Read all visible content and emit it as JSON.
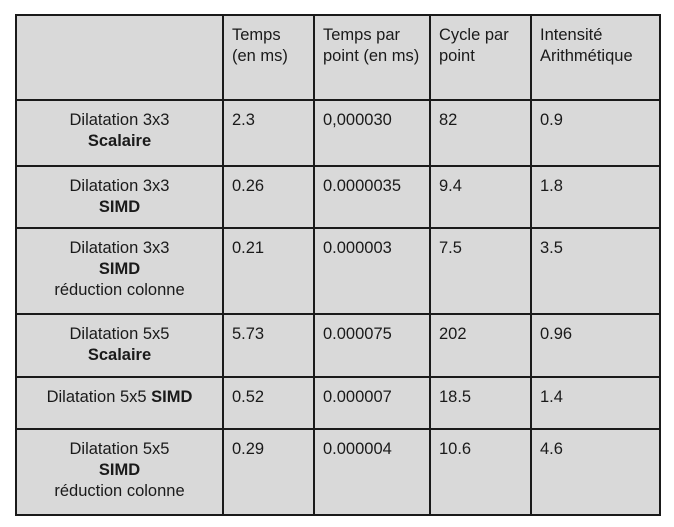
{
  "table": {
    "headers": [
      "",
      "Temps (en ms)",
      "Temps par point (en ms)",
      "Cycle par point",
      "Intensité Arithmétique"
    ],
    "rows": [
      {
        "label_line1": "Dilatation 3x3",
        "label_bold": "Scalaire",
        "label_line3": "",
        "values": [
          "2.3",
          "0,000030",
          "82",
          "0.9"
        ]
      },
      {
        "label_line1": "Dilatation 3x3",
        "label_bold": "SIMD",
        "label_line3": "",
        "values": [
          "0.26",
          "0.0000035",
          "9.4",
          "1.8"
        ]
      },
      {
        "label_line1": "Dilatation 3x3",
        "label_bold": "SIMD",
        "label_line3": "réduction colonne",
        "values": [
          "0.21",
          "0.000003",
          "7.5",
          "3.5"
        ]
      },
      {
        "label_line1": "Dilatation 5x5",
        "label_bold": "Scalaire",
        "label_line3": "",
        "values": [
          "5.73",
          "0.000075",
          "202",
          "0.96"
        ]
      },
      {
        "label_line1": "Dilatation 5x5",
        "label_bold": "SIMD",
        "label_line3": "",
        "values": [
          "0.52",
          "0.000007",
          "18.5",
          "1.4"
        ]
      },
      {
        "label_line1": "Dilatation 5x5",
        "label_bold": "SIMD",
        "label_line3": "réduction colonne",
        "values": [
          "0.29",
          "0.000004",
          "10.6",
          "4.6"
        ]
      }
    ]
  }
}
